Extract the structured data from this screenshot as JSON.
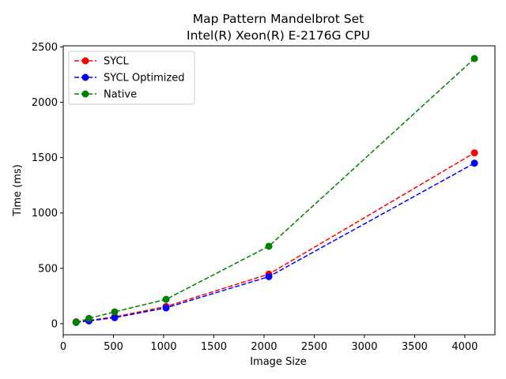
{
  "chart_data": {
    "type": "line",
    "title": "Map Pattern Mandelbrot Set",
    "subtitle": "Intel(R) Xeon(R) E-2176G CPU",
    "xlabel": "Image Size",
    "ylabel": "Time (ms)",
    "xlim": [
      0,
      4300
    ],
    "ylim": [
      -100,
      2510
    ],
    "xticks": [
      0,
      500,
      1000,
      1500,
      2000,
      2500,
      3000,
      3500,
      4000
    ],
    "yticks": [
      0,
      500,
      1000,
      1500,
      2000,
      2500
    ],
    "legend_position": "upper-left",
    "grid": false,
    "x": [
      128,
      256,
      512,
      1024,
      2048,
      4096
    ],
    "series": [
      {
        "name": "SYCL",
        "color": "#ff0000",
        "style": "dashed",
        "marker": "circle",
        "values": [
          18,
          30,
          62,
          155,
          448,
          1543
        ]
      },
      {
        "name": "SYCL Optimized",
        "color": "#0000ff",
        "style": "dashed",
        "marker": "circle",
        "values": [
          12,
          25,
          55,
          143,
          425,
          1450
        ]
      },
      {
        "name": "Native",
        "color": "#008000",
        "style": "dashed",
        "marker": "circle",
        "values": [
          12,
          48,
          107,
          220,
          700,
          2395
        ]
      }
    ]
  }
}
